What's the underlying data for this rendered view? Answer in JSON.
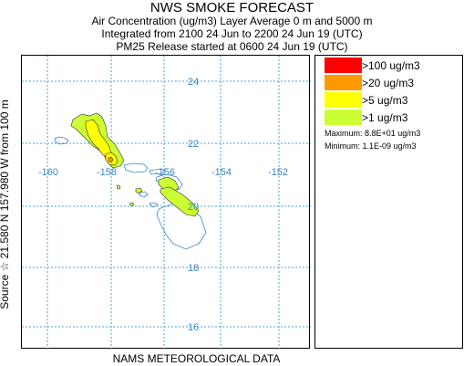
{
  "header": {
    "title": "NWS SMOKE FORECAST",
    "line1": "Air Concentration (ug/m3) Layer Average    0 m and  5000 m",
    "line2": "Integrated from 2100 24 Jun to 2200 24 Jun 19 (UTC)",
    "line3": "PM25 Release started at 0600 24 Jun 19 (UTC)"
  },
  "side_label": "Source ☆ 21.580  N 157.980  W     from  100 m",
  "footer": "NAMS METEOROLOGICAL DATA",
  "map": {
    "lat_labels": [
      "24",
      "22",
      "20",
      "18",
      "16"
    ],
    "lon_labels": [
      "-160",
      "-158",
      "-156",
      "-154",
      "-152"
    ]
  },
  "legend": {
    "items": [
      {
        "label": ">100 ug/m3",
        "color": "#ff0000"
      },
      {
        "label": ">20 ug/m3",
        "color": "#ff9900"
      },
      {
        "label": ">5 ug/m3",
        "color": "#ffff00"
      },
      {
        "label": ">1 ug/m3",
        "color": "#ccff33"
      }
    ],
    "maximum": "Maximum: 8.8E+01 ug/m3",
    "minimum": "Minimum: 1.1E-09 ug/m3"
  }
}
